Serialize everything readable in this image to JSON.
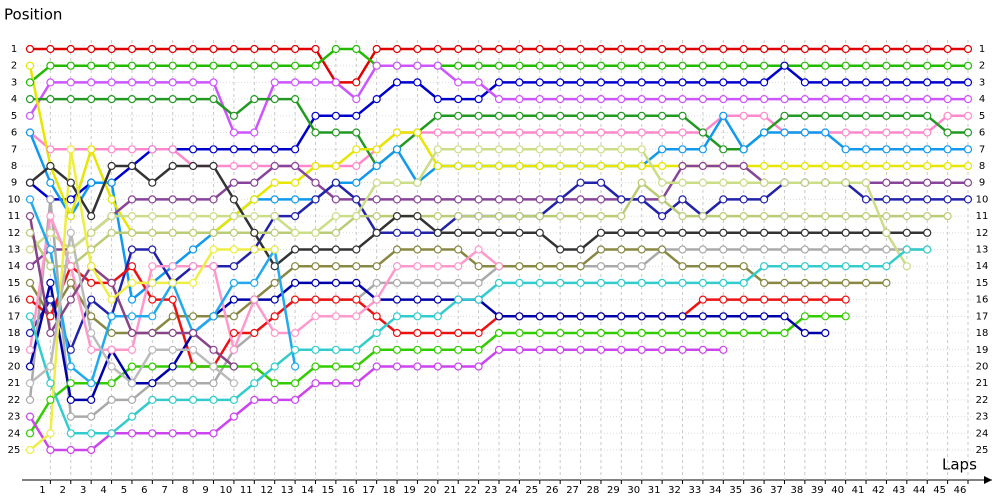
{
  "chart_data": {
    "type": "line",
    "y_title": "Position",
    "x_title": "Laps",
    "y_inverted": true,
    "grid": true,
    "xlim": [
      0,
      46
    ],
    "ylim": [
      1,
      25
    ],
    "xticks": [
      1,
      2,
      3,
      4,
      5,
      6,
      7,
      8,
      9,
      10,
      11,
      12,
      13,
      14,
      15,
      16,
      17,
      18,
      19,
      20,
      21,
      22,
      23,
      24,
      25,
      26,
      27,
      28,
      29,
      30,
      31,
      32,
      33,
      34,
      35,
      36,
      37,
      38,
      39,
      40,
      41,
      42,
      43,
      44,
      45,
      46
    ],
    "yticks": [
      1,
      2,
      3,
      4,
      5,
      6,
      7,
      8,
      9,
      10,
      11,
      12,
      13,
      14,
      15,
      16,
      17,
      18,
      19,
      20,
      21,
      22,
      23,
      24,
      25
    ],
    "x": [
      0,
      1,
      2,
      3,
      4,
      5,
      6,
      7,
      8,
      9,
      10,
      11,
      12,
      13,
      14,
      15,
      16,
      17,
      18,
      19,
      20,
      21,
      22,
      23,
      24,
      25,
      26,
      27,
      28,
      29,
      30,
      31,
      32,
      33,
      34,
      35,
      36,
      37,
      38,
      39,
      40,
      41,
      42,
      43,
      44,
      45,
      46
    ],
    "series": [
      {
        "color": "#e00000",
        "values": [
          1,
          1,
          1,
          1,
          1,
          1,
          1,
          1,
          1,
          1,
          1,
          1,
          1,
          1,
          1,
          3,
          3,
          1,
          1,
          1,
          1,
          1,
          1,
          1,
          1,
          1,
          1,
          1,
          1,
          1,
          1,
          1,
          1,
          1,
          1,
          1,
          1,
          1,
          1,
          1,
          1,
          1,
          1,
          1,
          1,
          1,
          1
        ]
      },
      {
        "color": "#22bb00",
        "values": [
          3,
          2,
          2,
          2,
          2,
          2,
          2,
          2,
          2,
          2,
          2,
          2,
          2,
          2,
          2,
          1,
          1,
          2,
          2,
          2,
          2,
          2,
          2,
          2,
          2,
          2,
          2,
          2,
          2,
          2,
          2,
          2,
          2,
          2,
          2,
          2,
          2,
          2,
          2,
          2,
          2,
          2,
          2,
          2,
          2,
          2,
          2
        ]
      },
      {
        "color": "#0000cc",
        "values": [
          9,
          10,
          10,
          9,
          9,
          8,
          7,
          7,
          7,
          7,
          7,
          7,
          7,
          7,
          5,
          5,
          5,
          4,
          3,
          3,
          4,
          4,
          4,
          3,
          3,
          3,
          3,
          3,
          3,
          3,
          3,
          3,
          3,
          3,
          3,
          3,
          3,
          2,
          3,
          3,
          3,
          3,
          3,
          3,
          3,
          3,
          3
        ]
      },
      {
        "color": "#cc55ff",
        "values": [
          5,
          3,
          3,
          3,
          3,
          3,
          3,
          3,
          3,
          3,
          6,
          6,
          3,
          3,
          3,
          3,
          4,
          2,
          2,
          2,
          2,
          3,
          3,
          4,
          4,
          4,
          4,
          4,
          4,
          4,
          4,
          4,
          4,
          4,
          4,
          4,
          4,
          4,
          4,
          4,
          4,
          4,
          4,
          4,
          4,
          4,
          4
        ]
      },
      {
        "color": "#ff88cc",
        "values": [
          6,
          7,
          7,
          7,
          7,
          7,
          7,
          7,
          8,
          8,
          8,
          8,
          8,
          8,
          8,
          8,
          8,
          7,
          6,
          6,
          6,
          6,
          6,
          6,
          6,
          6,
          6,
          6,
          6,
          6,
          6,
          6,
          6,
          6,
          5,
          5,
          5,
          6,
          6,
          6,
          6,
          6,
          6,
          6,
          6,
          5,
          5
        ]
      },
      {
        "color": "#229922",
        "values": [
          4,
          4,
          4,
          4,
          4,
          4,
          4,
          4,
          4,
          4,
          5,
          4,
          4,
          4,
          6,
          6,
          6,
          8,
          7,
          6,
          5,
          5,
          5,
          5,
          5,
          5,
          5,
          5,
          5,
          5,
          5,
          5,
          5,
          6,
          7,
          7,
          6,
          5,
          5,
          5,
          5,
          5,
          5,
          5,
          5,
          6,
          6
        ]
      },
      {
        "color": "#1199ee",
        "values": [
          6,
          9,
          11,
          9,
          9,
          16,
          15,
          14,
          13,
          12,
          11,
          10,
          10,
          10,
          10,
          9,
          9,
          8,
          7,
          9,
          8,
          8,
          8,
          8,
          8,
          8,
          8,
          8,
          8,
          8,
          8,
          7,
          7,
          7,
          5,
          7,
          6,
          6,
          6,
          6,
          7,
          7,
          7,
          7,
          7,
          7,
          7
        ]
      },
      {
        "color": "#e6e600",
        "values": [
          2,
          8,
          11,
          7,
          10,
          12,
          12,
          12,
          12,
          12,
          11,
          10,
          9,
          9,
          8,
          8,
          7,
          7,
          6,
          6,
          8,
          8,
          8,
          8,
          8,
          8,
          8,
          8,
          8,
          8,
          8,
          8,
          8,
          8,
          8,
          8,
          8,
          8,
          8,
          8,
          8,
          8,
          8,
          8,
          8,
          8,
          8
        ]
      },
      {
        "color": "#884499",
        "values": [
          14,
          13,
          13,
          12,
          11,
          10,
          10,
          10,
          10,
          10,
          9,
          9,
          8,
          8,
          9,
          10,
          10,
          10,
          10,
          10,
          10,
          10,
          10,
          10,
          10,
          10,
          10,
          10,
          10,
          10,
          10,
          10,
          8,
          8,
          8,
          8,
          9,
          9,
          9,
          9,
          9,
          9,
          9,
          9,
          9,
          9,
          9
        ]
      },
      {
        "color": "#2222aa",
        "values": [
          18,
          16,
          19,
          16,
          17,
          13,
          13,
          15,
          14,
          14,
          14,
          13,
          11,
          11,
          10,
          9,
          10,
          12,
          12,
          12,
          12,
          11,
          11,
          11,
          11,
          11,
          10,
          9,
          9,
          10,
          10,
          11,
          10,
          11,
          10,
          10,
          10,
          9,
          9,
          9,
          9,
          10,
          10,
          10,
          10,
          10,
          10
        ]
      },
      {
        "color": "#bbcc77",
        "values": [
          12,
          14,
          14,
          13,
          12,
          12,
          12,
          12,
          12,
          12,
          12,
          12,
          12,
          12,
          12,
          12,
          11,
          11,
          11,
          11,
          11,
          11,
          11,
          11,
          11,
          11,
          11,
          11,
          11,
          11,
          9,
          10,
          11,
          11,
          11,
          11,
          11,
          11,
          11,
          11,
          11,
          11,
          11,
          11,
          11,
          11,
          null
        ]
      },
      {
        "color": "#333333",
        "values": [
          9,
          8,
          9,
          11,
          8,
          8,
          9,
          8,
          8,
          8,
          10,
          12,
          14,
          13,
          13,
          13,
          13,
          12,
          11,
          11,
          12,
          12,
          12,
          12,
          12,
          12,
          13,
          13,
          12,
          12,
          12,
          12,
          12,
          12,
          12,
          12,
          12,
          12,
          12,
          12,
          12,
          12,
          12,
          12,
          12,
          null,
          null
        ]
      },
      {
        "color": "#aaaaaa",
        "values": [
          22,
          10,
          23,
          23,
          22,
          22,
          21,
          21,
          21,
          21,
          19,
          18,
          17,
          16,
          16,
          16,
          16,
          15,
          15,
          15,
          15,
          15,
          15,
          14,
          14,
          14,
          14,
          14,
          14,
          14,
          14,
          13,
          13,
          13,
          13,
          13,
          13,
          13,
          13,
          13,
          13,
          13,
          13,
          13,
          13,
          null,
          null
        ]
      },
      {
        "color": "#ccdd88",
        "values": [
          13,
          12,
          13,
          12,
          11,
          11,
          11,
          11,
          11,
          11,
          11,
          11,
          11,
          12,
          12,
          11,
          11,
          9,
          9,
          9,
          7,
          7,
          7,
          7,
          7,
          7,
          7,
          7,
          7,
          7,
          7,
          9,
          9,
          9,
          9,
          9,
          9,
          9,
          9,
          9,
          9,
          9,
          12,
          14,
          null,
          null,
          null
        ]
      },
      {
        "color": "#888844",
        "values": [
          15,
          17,
          15,
          17,
          18,
          18,
          18,
          17,
          17,
          17,
          17,
          16,
          15,
          14,
          14,
          14,
          14,
          14,
          13,
          13,
          13,
          13,
          14,
          14,
          14,
          14,
          14,
          14,
          13,
          13,
          13,
          13,
          14,
          14,
          14,
          14,
          15,
          15,
          15,
          15,
          15,
          15,
          15,
          null,
          null,
          null,
          null
        ]
      },
      {
        "color": "#ee1111",
        "values": [
          16,
          17,
          14,
          15,
          15,
          14,
          16,
          16,
          20,
          20,
          18,
          18,
          17,
          16,
          16,
          16,
          16,
          17,
          18,
          18,
          18,
          18,
          18,
          17,
          17,
          17,
          17,
          17,
          17,
          17,
          17,
          17,
          17,
          16,
          16,
          16,
          16,
          16,
          16,
          16,
          16,
          null,
          null,
          null,
          null,
          null,
          null
        ]
      },
      {
        "color": "#33cc00",
        "values": [
          24,
          22,
          21,
          21,
          21,
          20,
          20,
          20,
          20,
          20,
          20,
          20,
          21,
          21,
          20,
          20,
          20,
          19,
          19,
          19,
          19,
          19,
          19,
          18,
          18,
          18,
          18,
          18,
          18,
          18,
          18,
          18,
          18,
          18,
          18,
          18,
          18,
          18,
          17,
          17,
          17,
          null,
          null,
          null,
          null,
          null,
          null
        ]
      },
      {
        "color": "#0000aa",
        "values": [
          20,
          15,
          22,
          22,
          19,
          21,
          21,
          20,
          18,
          17,
          16,
          16,
          16,
          15,
          15,
          15,
          15,
          16,
          16,
          16,
          16,
          16,
          16,
          17,
          17,
          17,
          17,
          17,
          17,
          17,
          17,
          17,
          17,
          17,
          17,
          17,
          17,
          17,
          18,
          18,
          null,
          null,
          null,
          null,
          null,
          null,
          null
        ]
      },
      {
        "color": "#cc44ee",
        "values": [
          23,
          25,
          25,
          25,
          24,
          24,
          24,
          24,
          24,
          24,
          23,
          22,
          22,
          22,
          21,
          21,
          21,
          20,
          20,
          20,
          20,
          20,
          20,
          19,
          19,
          19,
          19,
          19,
          19,
          19,
          19,
          19,
          19,
          19,
          19,
          null,
          null,
          null,
          null,
          null,
          null,
          null,
          null,
          null,
          null,
          null,
          null
        ]
      },
      {
        "color": "#ff99cc",
        "values": [
          19,
          11,
          14,
          19,
          19,
          19,
          14,
          14,
          14,
          14,
          19,
          16,
          18,
          18,
          17,
          17,
          17,
          16,
          14,
          14,
          14,
          14,
          13,
          14,
          null,
          null,
          null,
          null,
          null,
          null,
          null,
          null,
          null,
          null,
          null,
          null,
          null,
          null,
          null,
          null,
          null,
          null,
          null,
          null,
          null,
          null,
          null
        ]
      },
      {
        "color": "#33cccc",
        "values": [
          17,
          21,
          24,
          24,
          24,
          23,
          22,
          22,
          22,
          22,
          22,
          21,
          20,
          19,
          19,
          19,
          19,
          18,
          17,
          17,
          17,
          16,
          16,
          15,
          15,
          15,
          15,
          15,
          15,
          15,
          15,
          15,
          15,
          15,
          15,
          15,
          14,
          14,
          14,
          14,
          14,
          14,
          14,
          13,
          13,
          null,
          null
        ]
      },
      {
        "color": "#22aaee",
        "values": [
          10,
          13,
          20,
          21,
          17,
          17,
          17,
          15,
          18,
          17,
          15,
          15,
          13,
          20,
          null,
          null,
          null,
          null,
          null,
          null,
          null,
          null,
          null,
          null,
          null,
          null,
          null,
          null,
          null,
          null,
          null,
          null,
          null,
          null,
          null,
          null,
          null,
          null,
          null,
          null,
          null,
          null,
          null,
          null,
          null,
          null,
          null
        ]
      },
      {
        "color": "#884488",
        "values": [
          11,
          18,
          16,
          14,
          15,
          18,
          18,
          18,
          18,
          19,
          20,
          null,
          null,
          null,
          null,
          null,
          null,
          null,
          null,
          null,
          null,
          null,
          null,
          null,
          null,
          null,
          null,
          null,
          null,
          null,
          null,
          null,
          null,
          null,
          null,
          null,
          null,
          null,
          null,
          null,
          null,
          null,
          null,
          null,
          null,
          null,
          null
        ]
      },
      {
        "color": "#eeee44",
        "values": [
          25,
          24,
          7,
          14,
          16,
          15,
          15,
          15,
          15,
          13,
          13,
          13,
          13,
          null,
          null,
          null,
          null,
          null,
          null,
          null,
          null,
          null,
          null,
          null,
          null,
          null,
          null,
          null,
          null,
          null,
          null,
          null,
          null,
          null,
          null,
          null,
          null,
          null,
          null,
          null,
          null,
          null,
          null,
          null,
          null,
          null,
          null
        ]
      },
      {
        "color": "#bbbbbb",
        "values": [
          21,
          20,
          12,
          18,
          20,
          21,
          19,
          19,
          19,
          20,
          21,
          null,
          null,
          null,
          null,
          null,
          null,
          null,
          null,
          null,
          null,
          null,
          null,
          null,
          null,
          null,
          null,
          null,
          null,
          null,
          null,
          null,
          null,
          null,
          null,
          null,
          null,
          null,
          null,
          null,
          null,
          null,
          null,
          null,
          null,
          null,
          null
        ]
      }
    ]
  }
}
